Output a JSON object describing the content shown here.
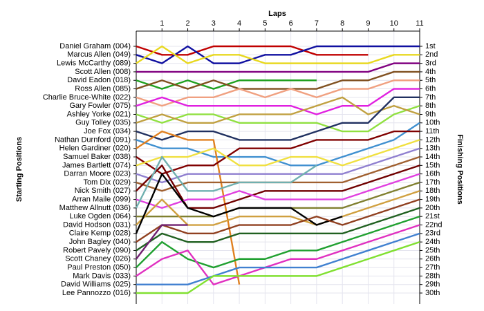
{
  "chart_data": {
    "type": "line",
    "x_label": "Laps",
    "left_label": "Starting Positions",
    "right_label": "Finishing Positions",
    "x": [
      0,
      1,
      2,
      3,
      4,
      5,
      6,
      7,
      8,
      9,
      10,
      11
    ],
    "xlim": [
      0,
      11
    ],
    "xticks": [
      1,
      2,
      3,
      4,
      5,
      6,
      7,
      8,
      9,
      10,
      11
    ],
    "ylim": [
      1,
      30
    ],
    "yticks": [
      1,
      2,
      3,
      4,
      5,
      6,
      7,
      8,
      9,
      10,
      11,
      12,
      13,
      14,
      15,
      16,
      17,
      18,
      19,
      20,
      21,
      22,
      23,
      24,
      25,
      26,
      27,
      28,
      29,
      30
    ],
    "grid": true,
    "finish_labels": [
      "1st",
      "2nd",
      "3rd",
      "4th",
      "5th",
      "6th",
      "7th",
      "8th",
      "9th",
      "10th",
      "11th",
      "12th",
      "13th",
      "14th",
      "15th",
      "16th",
      "17th",
      "18th",
      "19th",
      "20th",
      "21st",
      "22nd",
      "23rd",
      "24th",
      "25th",
      "26th",
      "27th",
      "28th",
      "29th",
      "30th"
    ],
    "series": [
      {
        "name": "Daniel Graham (004)",
        "color": "#c00000",
        "values": [
          1,
          2,
          2,
          1,
          1,
          1,
          1,
          2,
          2,
          2,
          null,
          null
        ]
      },
      {
        "name": "Marcus Allen (049)",
        "color": "#1010a0",
        "values": [
          2,
          3,
          1,
          3,
          3,
          2,
          2,
          1,
          1,
          1,
          1,
          1
        ]
      },
      {
        "name": "Lewis McCarthy (089)",
        "color": "#e8d820",
        "values": [
          3,
          1,
          3,
          2,
          2,
          3,
          3,
          3,
          3,
          3,
          2,
          2
        ]
      },
      {
        "name": "Scott Allen (008)",
        "color": "#800080",
        "values": [
          4,
          4,
          4,
          4,
          4,
          4,
          4,
          4,
          4,
          4,
          3,
          3
        ]
      },
      {
        "name": "David Eadon (018)",
        "color": "#20a020",
        "values": [
          5,
          6,
          5,
          6,
          5,
          5,
          5,
          5,
          null,
          null,
          null,
          null
        ]
      },
      {
        "name": "Ross Allen (085)",
        "color": "#805020",
        "values": [
          6,
          5,
          6,
          5,
          6,
          6,
          6,
          6,
          5,
          5,
          4,
          4
        ]
      },
      {
        "name": "Charlie Bruce-White (022)",
        "color": "#f0a080",
        "values": [
          7,
          8,
          7,
          7,
          6,
          7,
          6,
          7,
          6,
          6,
          5,
          5
        ]
      },
      {
        "name": "Gary Fowler (075)",
        "color": "#e020e0",
        "values": [
          8,
          7,
          8,
          8,
          8,
          8,
          8,
          9,
          8,
          8,
          6,
          6
        ]
      },
      {
        "name": "Ashley Yorke (021)",
        "color": "#90e040",
        "values": [
          9,
          10,
          9,
          9,
          10,
          10,
          10,
          10,
          11,
          11,
          9,
          8
        ]
      },
      {
        "name": "Guy Tolley (035)",
        "color": "#c0a040",
        "values": [
          10,
          9,
          10,
          10,
          9,
          9,
          9,
          8,
          7,
          9,
          8,
          9
        ]
      },
      {
        "name": "Joe Fox (034)",
        "color": "#203060",
        "values": [
          11,
          12,
          11,
          11,
          12,
          12,
          12,
          11,
          10,
          10,
          7,
          7
        ]
      },
      {
        "name": "Nathan Durnford (091)",
        "color": "#4090d0",
        "values": [
          12,
          13,
          13,
          14,
          14,
          14,
          15,
          15,
          14,
          13,
          12,
          10
        ]
      },
      {
        "name": "Helen Gardiner (020)",
        "color": "#e08020",
        "values": [
          13,
          11,
          12,
          12,
          29,
          null,
          null,
          null,
          null,
          null,
          null,
          null
        ]
      },
      {
        "name": "Samuel Baker (038)",
        "color": "#800000",
        "values": [
          14,
          16,
          15,
          15,
          13,
          13,
          13,
          12,
          12,
          12,
          11,
          11
        ]
      },
      {
        "name": "James Bartlett (074)",
        "color": "#f0e040",
        "values": [
          15,
          14,
          14,
          13,
          15,
          15,
          14,
          14,
          15,
          14,
          13,
          12
        ]
      },
      {
        "name": "Darran Moore (023)",
        "color": "#9080d0",
        "values": [
          16,
          17,
          16,
          16,
          16,
          16,
          16,
          16,
          16,
          15,
          14,
          13
        ]
      },
      {
        "name": "Tom Dix (029)",
        "color": "#a06030",
        "values": [
          17,
          18,
          17,
          17,
          17,
          17,
          17,
          17,
          17,
          16,
          15,
          14
        ]
      },
      {
        "name": "Nick Smith (027)",
        "color": "#700000",
        "values": [
          18,
          15,
          20,
          20,
          19,
          18,
          18,
          18,
          18,
          17,
          16,
          15
        ]
      },
      {
        "name": "Arran Maile (099)",
        "color": "#e040e0",
        "values": [
          19,
          20,
          19,
          19,
          18,
          19,
          19,
          19,
          19,
          18,
          17,
          16
        ]
      },
      {
        "name": "Matthew Allnutt (036)",
        "color": "#70b0b0",
        "values": [
          20,
          14,
          18,
          18,
          17,
          17,
          17,
          15,
          null,
          null,
          null,
          null
        ]
      },
      {
        "name": "Luke Ogden (064)",
        "color": "#808030",
        "values": [
          21,
          21,
          21,
          21,
          20,
          20,
          20,
          20,
          20,
          19,
          18,
          17
        ]
      },
      {
        "name": "David Hodson (031)",
        "color": "#d0a040",
        "values": [
          22,
          19,
          22,
          22,
          21,
          21,
          21,
          22,
          21,
          20,
          19,
          18
        ]
      },
      {
        "name": "Claire Kemp (028)",
        "color": "#000000",
        "values": [
          23,
          16,
          20,
          21,
          20,
          20,
          20,
          22,
          21,
          null,
          null,
          null
        ]
      },
      {
        "name": "John Bagley (040)",
        "color": "#904020",
        "values": [
          24,
          22,
          23,
          23,
          22,
          22,
          22,
          21,
          22,
          21,
          20,
          19
        ]
      },
      {
        "name": "Robert Pavely (090)",
        "color": "#206020",
        "values": [
          25,
          23,
          24,
          24,
          23,
          23,
          23,
          23,
          23,
          22,
          21,
          20
        ]
      },
      {
        "name": "Scott Chaney (026)",
        "color": "#702070",
        "values": [
          26,
          22,
          22,
          null,
          null,
          null,
          null,
          null,
          null,
          null,
          null,
          null
        ]
      },
      {
        "name": "Paul Preston (050)",
        "color": "#20a030",
        "values": [
          27,
          24,
          26,
          27,
          26,
          26,
          25,
          25,
          24,
          23,
          22,
          21
        ]
      },
      {
        "name": "Mark Davis (033)",
        "color": "#e030c0",
        "values": [
          28,
          26,
          25,
          29,
          28,
          27,
          26,
          26,
          25,
          24,
          23,
          22
        ]
      },
      {
        "name": "David Williams (025)",
        "color": "#4080d0",
        "values": [
          29,
          29,
          29,
          28,
          27,
          27,
          27,
          27,
          26,
          25,
          24,
          23
        ]
      },
      {
        "name": "Lee Pannozzo (016)",
        "color": "#80e030",
        "values": [
          30,
          30,
          30,
          28,
          28,
          28,
          28,
          28,
          27,
          26,
          25,
          24
        ]
      }
    ]
  }
}
